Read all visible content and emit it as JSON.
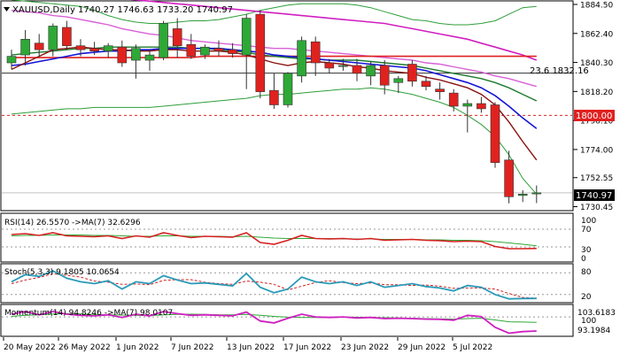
{
  "header": {
    "title": "XAUUSD,Daily",
    "ohlc": "1740.27 1746.63 1733.20 1740.97"
  },
  "price_axis": {
    "ticks": [
      "1884.50",
      "1862.40",
      "1840.30",
      "1818.20",
      "1796.10",
      "1774.00",
      "1752.55",
      "1730.45"
    ],
    "current_price": "1740.97",
    "level_1800": "1800.00"
  },
  "annotations": {
    "fib_label": "23.6 1832.16"
  },
  "rsi_panel": {
    "label": "RSI(14) 26.5570 ->MA(7) 32.6296",
    "ticks": [
      "100",
      "70",
      "30",
      "0"
    ]
  },
  "stoch_panel": {
    "label": "Stoch(5,3,3) 9.1805 10.0654",
    "ticks": [
      "80",
      "20"
    ]
  },
  "momentum_panel": {
    "label": "Momentum(14) 94.8246 ->MA(7) 98.0107",
    "ticks": [
      "103.6183",
      "100",
      "93.1984"
    ]
  },
  "time_axis": {
    "labels": [
      "20 May 2022",
      "26 May 2022",
      "1 Jun 2022",
      "7 Jun 2022",
      "13 Jun 2022",
      "17 Jun 2022",
      "23 Jun 2022",
      "29 Jun 2022",
      "5 Jul 2022"
    ]
  },
  "colors": {
    "bull": "#2ea836",
    "bear": "#e0221f",
    "bb": "#2e9e3a",
    "ema_blue": "#1414d8",
    "ema_dark": "#8a1010",
    "ema_green": "#1e7a2e",
    "ma_pink": "#d860d8",
    "ma_magenta": "#d020c0",
    "ma_red": "#e02020",
    "fib_line": "#333333",
    "rsi_line": "#d42020",
    "rsi_ma": "#2ea836",
    "stoch_main": "#2a9ab8",
    "stoch_signal": "#d02020",
    "mom_line": "#d020c0",
    "mom_ma": "#2ea836",
    "label_box": "#e02020"
  },
  "chart_data": {
    "type": "candlestick",
    "ohlc": [
      {
        "o": 1840.0,
        "h": 1850.0,
        "l": 1835.0,
        "c": 1845.0
      },
      {
        "o": 1846.0,
        "h": 1865.0,
        "l": 1838.0,
        "c": 1858.0
      },
      {
        "o": 1855.0,
        "h": 1862.0,
        "l": 1845.0,
        "c": 1850.0
      },
      {
        "o": 1850.0,
        "h": 1870.0,
        "l": 1845.0,
        "c": 1868.0
      },
      {
        "o": 1867.0,
        "h": 1872.0,
        "l": 1850.0,
        "c": 1853.0
      },
      {
        "o": 1853.0,
        "h": 1858.0,
        "l": 1845.0,
        "c": 1850.0
      },
      {
        "o": 1851.0,
        "h": 1856.0,
        "l": 1846.0,
        "c": 1849.0
      },
      {
        "o": 1849.0,
        "h": 1855.0,
        "l": 1844.0,
        "c": 1853.0
      },
      {
        "o": 1852.0,
        "h": 1857.0,
        "l": 1837.0,
        "c": 1840.0
      },
      {
        "o": 1842.0,
        "h": 1854.0,
        "l": 1828.0,
        "c": 1851.0
      },
      {
        "o": 1842.0,
        "h": 1850.0,
        "l": 1834.0,
        "c": 1846.0
      },
      {
        "o": 1844.0,
        "h": 1872.0,
        "l": 1842.0,
        "c": 1870.0
      },
      {
        "o": 1866.0,
        "h": 1874.0,
        "l": 1844.0,
        "c": 1853.0
      },
      {
        "o": 1854.0,
        "h": 1862.0,
        "l": 1843.0,
        "c": 1845.0
      },
      {
        "o": 1846.0,
        "h": 1854.0,
        "l": 1843.0,
        "c": 1852.0
      },
      {
        "o": 1851.0,
        "h": 1857.0,
        "l": 1845.0,
        "c": 1849.0
      },
      {
        "o": 1850.0,
        "h": 1855.0,
        "l": 1844.0,
        "c": 1847.0
      },
      {
        "o": 1846.0,
        "h": 1877.0,
        "l": 1820.0,
        "c": 1874.0
      },
      {
        "o": 1877.0,
        "h": 1880.0,
        "l": 1813.0,
        "c": 1818.0
      },
      {
        "o": 1819.0,
        "h": 1832.0,
        "l": 1805.0,
        "c": 1808.0
      },
      {
        "o": 1808.0,
        "h": 1833.0,
        "l": 1806.0,
        "c": 1832.0
      },
      {
        "o": 1830.0,
        "h": 1860.0,
        "l": 1825.0,
        "c": 1857.0
      },
      {
        "o": 1856.0,
        "h": 1860.0,
        "l": 1830.0,
        "c": 1840.0
      },
      {
        "o": 1840.0,
        "h": 1843.0,
        "l": 1832.0,
        "c": 1836.0
      },
      {
        "o": 1838.0,
        "h": 1843.0,
        "l": 1834.0,
        "c": 1838.0
      },
      {
        "o": 1838.0,
        "h": 1843.0,
        "l": 1826.0,
        "c": 1832.0
      },
      {
        "o": 1830.0,
        "h": 1841.0,
        "l": 1823.0,
        "c": 1838.0
      },
      {
        "o": 1838.0,
        "h": 1842.0,
        "l": 1816.0,
        "c": 1823.0
      },
      {
        "o": 1825.0,
        "h": 1830.0,
        "l": 1817.0,
        "c": 1828.0
      },
      {
        "o": 1839.0,
        "h": 1842.0,
        "l": 1822.0,
        "c": 1826.0
      },
      {
        "o": 1826.0,
        "h": 1830.0,
        "l": 1819.0,
        "c": 1822.0
      },
      {
        "o": 1820.0,
        "h": 1825.0,
        "l": 1812.0,
        "c": 1818.0
      },
      {
        "o": 1817.0,
        "h": 1820.0,
        "l": 1803.0,
        "c": 1807.0
      },
      {
        "o": 1807.0,
        "h": 1812.0,
        "l": 1787.0,
        "c": 1809.0
      },
      {
        "o": 1809.0,
        "h": 1814.0,
        "l": 1802.0,
        "c": 1805.0
      },
      {
        "o": 1808.0,
        "h": 1810.0,
        "l": 1760.0,
        "c": 1764.0
      },
      {
        "o": 1766.0,
        "h": 1773.0,
        "l": 1733.0,
        "c": 1738.0
      },
      {
        "o": 1739.0,
        "h": 1743.0,
        "l": 1734.0,
        "c": 1740.0
      },
      {
        "o": 1740.27,
        "h": 1746.63,
        "l": 1733.2,
        "c": 1740.97
      }
    ],
    "price_ylim": [
      1730.45,
      1884.5
    ],
    "fib_level": 1832.16,
    "level_1800": 1800.0,
    "current_price": 1740.97,
    "indicators": {
      "bb_upper": [
        1888,
        1887,
        1886,
        1885,
        1884,
        1883,
        1880,
        1876,
        1873,
        1871,
        1870,
        1870,
        1871,
        1872,
        1872,
        1873,
        1875,
        1877,
        1880,
        1882,
        1884,
        1885,
        1885,
        1885,
        1885,
        1884,
        1882,
        1879,
        1876,
        1873,
        1872,
        1870,
        1869,
        1869,
        1870,
        1872,
        1877,
        1882,
        1883
      ],
      "bb_lower": [
        1801,
        1802,
        1803,
        1804,
        1805,
        1805,
        1806,
        1806,
        1806,
        1806,
        1806,
        1807,
        1808,
        1809,
        1810,
        1811,
        1812,
        1813,
        1815,
        1816,
        1816,
        1817,
        1818,
        1819,
        1820,
        1820,
        1821,
        1820,
        1818,
        1816,
        1813,
        1810,
        1806,
        1800,
        1793,
        1784,
        1770,
        1752,
        1740
      ],
      "ema_dark": [
        1835,
        1840,
        1845,
        1850,
        1851,
        1852,
        1851,
        1850,
        1850,
        1849,
        1849,
        1850,
        1850,
        1849,
        1849,
        1849,
        1848,
        1846,
        1843,
        1840,
        1838,
        1840,
        1841,
        1840,
        1839,
        1837,
        1836,
        1834,
        1833,
        1832,
        1829,
        1827,
        1824,
        1821,
        1816,
        1808,
        1795,
        1780,
        1766
      ],
      "ema_blue": [
        1838,
        1839,
        1841,
        1843,
        1845,
        1847,
        1848,
        1849,
        1849,
        1850,
        1850,
        1851,
        1851,
        1851,
        1851,
        1851,
        1850,
        1849,
        1848,
        1846,
        1845,
        1844,
        1843,
        1842,
        1841,
        1840,
        1839,
        1838,
        1837,
        1836,
        1834,
        1831,
        1828,
        1825,
        1821,
        1815,
        1807,
        1798,
        1790
      ],
      "ema_green": [
        1846,
        1847,
        1848,
        1849,
        1850,
        1851,
        1851,
        1852,
        1852,
        1852,
        1852,
        1852,
        1852,
        1851,
        1851,
        1850,
        1849,
        1848,
        1846,
        1845,
        1844,
        1843,
        1843,
        1842,
        1842,
        1842,
        1841,
        1840,
        1839,
        1838,
        1836,
        1834,
        1832,
        1830,
        1828,
        1825,
        1821,
        1816,
        1811
      ],
      "ma_pink": [
        1880,
        1879,
        1878,
        1876,
        1875,
        1873,
        1871,
        1869,
        1866,
        1864,
        1862,
        1861,
        1859,
        1857,
        1856,
        1855,
        1854,
        1853,
        1852,
        1851,
        1851,
        1850,
        1849,
        1848,
        1847,
        1846,
        1845,
        1844,
        1843,
        1842,
        1840,
        1839,
        1837,
        1835,
        1833,
        1830,
        1828,
        1825,
        1822
      ],
      "ma_magenta": [
        1897,
        1896,
        1895,
        1894,
        1893,
        1892,
        1891,
        1890,
        1889,
        1888,
        1887,
        1886,
        1885,
        1884,
        1883,
        1882,
        1881,
        1880,
        1879,
        1878,
        1877,
        1876,
        1875,
        1874,
        1873,
        1872,
        1871,
        1870,
        1868,
        1866,
        1864,
        1862,
        1860,
        1858,
        1855,
        1852,
        1849,
        1846,
        1842
      ],
      "ma_red": [
        1844,
        1844,
        1844,
        1844,
        1844,
        1844,
        1844,
        1844,
        1844,
        1844,
        1844,
        1844,
        1844,
        1844,
        1845,
        1845,
        1845,
        1845,
        1845,
        1845,
        1845,
        1845,
        1845,
        1845,
        1845,
        1845,
        1845,
        1845,
        1845,
        1845,
        1845,
        1845,
        1845,
        1845,
        1845,
        1845,
        1845,
        1845,
        1845
      ],
      "rsi": [
        58,
        60,
        56,
        62,
        55,
        54,
        53,
        55,
        49,
        55,
        52,
        62,
        56,
        51,
        54,
        53,
        52,
        62,
        40,
        36,
        45,
        56,
        49,
        48,
        49,
        47,
        49,
        45,
        46,
        47,
        45,
        44,
        42,
        43,
        42,
        31,
        26,
        26,
        26.557
      ],
      "rsi_ma": [
        55,
        56,
        56,
        57,
        57,
        57,
        56,
        56,
        55,
        54,
        54,
        55,
        55,
        54,
        54,
        54,
        53,
        54,
        52,
        50,
        49,
        49,
        49,
        49,
        48,
        48,
        48,
        47,
        47,
        47,
        46,
        46,
        45,
        45,
        44,
        42,
        39,
        36,
        32.6296
      ],
      "stoch_main": [
        55,
        75,
        70,
        85,
        65,
        55,
        50,
        58,
        35,
        55,
        50,
        72,
        60,
        50,
        52,
        48,
        44,
        78,
        40,
        25,
        35,
        68,
        55,
        50,
        55,
        45,
        55,
        40,
        45,
        50,
        42,
        38,
        30,
        45,
        40,
        20,
        8,
        9,
        9.1805
      ],
      "stoch_signal": [
        50,
        60,
        67,
        77,
        73,
        68,
        57,
        54,
        48,
        49,
        47,
        59,
        61,
        61,
        54,
        50,
        48,
        57,
        54,
        48,
        33,
        43,
        53,
        58,
        53,
        50,
        52,
        47,
        47,
        45,
        46,
        43,
        37,
        38,
        38,
        35,
        23,
        12,
        10.0654
      ],
      "momentum": [
        101,
        102,
        100.8,
        102,
        101,
        100.6,
        100.4,
        100.8,
        99.8,
        101,
        100.4,
        102,
        101.2,
        100.6,
        100.8,
        100.6,
        100.4,
        101.8,
        98.5,
        97.8,
        99.5,
        101,
        100,
        99.8,
        100,
        99.6,
        99.8,
        99.4,
        99.5,
        99.4,
        99.2,
        99.1,
        98.8,
        100.6,
        100.1,
        96.2,
        94,
        94.6,
        94.8246
      ],
      "momentum_ma": [
        100.2,
        100.6,
        100.8,
        101.1,
        101.2,
        101.1,
        100.9,
        100.8,
        100.7,
        100.6,
        100.5,
        100.8,
        100.9,
        101,
        100.9,
        100.8,
        100.8,
        100.9,
        100.6,
        100.2,
        99.9,
        99.8,
        99.8,
        99.7,
        99.9,
        99.9,
        99.8,
        99.7,
        99.6,
        99.5,
        99.4,
        99.3,
        99.2,
        99.4,
        99.5,
        98.9,
        98.2,
        98.1,
        98.0107
      ]
    }
  }
}
